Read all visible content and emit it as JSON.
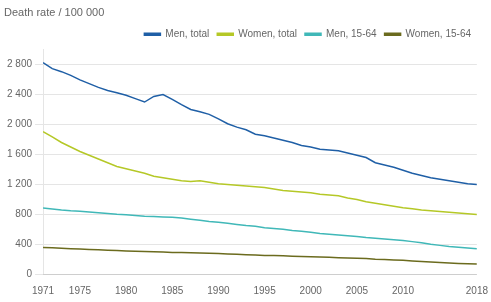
{
  "chart_data": {
    "type": "line",
    "ylabel": "Death rate / 100 000",
    "x": [
      1971,
      1972,
      1973,
      1974,
      1975,
      1976,
      1977,
      1978,
      1979,
      1980,
      1981,
      1982,
      1983,
      1984,
      1985,
      1986,
      1987,
      1988,
      1989,
      1990,
      1991,
      1992,
      1993,
      1994,
      1995,
      1996,
      1997,
      1998,
      1999,
      2000,
      2001,
      2002,
      2003,
      2004,
      2005,
      2006,
      2007,
      2008,
      2009,
      2010,
      2011,
      2012,
      2013,
      2014,
      2015,
      2016,
      2017,
      2018
    ],
    "series": [
      {
        "name": "Men, total",
        "color": "#1f5fa6",
        "values": [
          2820,
          2740,
          2700,
          2650,
          2590,
          2540,
          2490,
          2450,
          2420,
          2385,
          2340,
          2295,
          2370,
          2395,
          2330,
          2260,
          2195,
          2165,
          2130,
          2070,
          2005,
          1960,
          1925,
          1865,
          1845,
          1815,
          1785,
          1755,
          1715,
          1695,
          1665,
          1655,
          1645,
          1615,
          1585,
          1555,
          1485,
          1455,
          1425,
          1385,
          1345,
          1315,
          1285,
          1265,
          1245,
          1225,
          1205,
          1195
        ]
      },
      {
        "name": "Women, total",
        "color": "#b5c827",
        "values": [
          1900,
          1830,
          1755,
          1695,
          1635,
          1585,
          1535,
          1485,
          1435,
          1405,
          1375,
          1345,
          1305,
          1285,
          1265,
          1245,
          1235,
          1245,
          1225,
          1205,
          1195,
          1185,
          1175,
          1165,
          1155,
          1135,
          1115,
          1105,
          1095,
          1085,
          1065,
          1055,
          1045,
          1015,
          995,
          965,
          945,
          925,
          905,
          885,
          870,
          855,
          845,
          835,
          825,
          815,
          805,
          795
        ]
      },
      {
        "name": "Men, 15-64",
        "color": "#40b8b8",
        "values": [
          880,
          868,
          855,
          845,
          838,
          828,
          818,
          808,
          798,
          792,
          782,
          772,
          768,
          762,
          758,
          748,
          732,
          718,
          702,
          692,
          678,
          662,
          648,
          638,
          618,
          608,
          598,
          582,
          572,
          558,
          542,
          532,
          522,
          512,
          502,
          488,
          478,
          468,
          458,
          448,
          432,
          418,
          398,
          382,
          368,
          358,
          348,
          338
        ]
      },
      {
        "name": "Women, 15-64",
        "color": "#6b6b1e",
        "values": [
          355,
          350,
          344,
          338,
          334,
          328,
          323,
          318,
          313,
          308,
          303,
          300,
          296,
          293,
          288,
          286,
          283,
          280,
          278,
          273,
          268,
          263,
          258,
          253,
          248,
          246,
          242,
          238,
          234,
          230,
          226,
          222,
          218,
          214,
          210,
          206,
          198,
          193,
          188,
          183,
          175,
          168,
          160,
          153,
          146,
          140,
          136,
          133
        ]
      }
    ],
    "xlim": [
      1971,
      2018
    ],
    "xticks": [
      1971,
      1975,
      1980,
      1985,
      1990,
      1995,
      2000,
      2005,
      2010,
      2018
    ],
    "ylim": [
      0,
      3000
    ],
    "yticks": [
      0,
      400,
      800,
      {
        "value": 1200,
        "label": "1 200"
      },
      {
        "value": 1600,
        "label": "1 600"
      },
      {
        "value": 2000,
        "label": "2 000"
      },
      {
        "value": 2400,
        "label": "2 400"
      },
      {
        "value": 2800,
        "label": "2 800"
      }
    ],
    "grid": "y",
    "legend": "upper right"
  }
}
